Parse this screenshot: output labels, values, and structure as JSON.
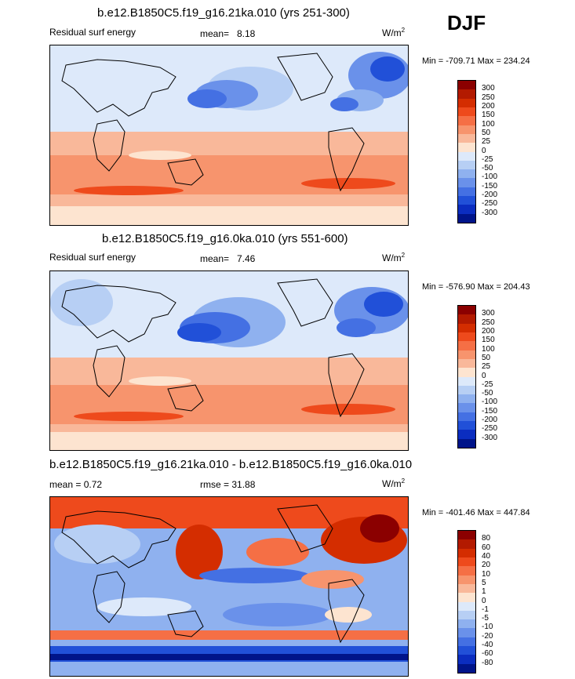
{
  "season": "DJF",
  "panels": [
    {
      "title": "b.e12.B1850C5.f19_g16.21ka.010 (yrs 251-300)",
      "left_label": "Residual surf energy",
      "mean_label": "mean=",
      "mean_value": "8.18",
      "units_base": "W/m",
      "units_exp": "2",
      "minmax": "Min = -709.71 Max = 234.24",
      "colorbar_labels": [
        "300",
        "250",
        "200",
        "150",
        "100",
        "50",
        "25",
        "0",
        "-25",
        "-50",
        "-100",
        "-150",
        "-200",
        "-250",
        "-300"
      ]
    },
    {
      "title": "b.e12.B1850C5.f19_g16.0ka.010 (yrs 551-600)",
      "left_label": "Residual surf energy",
      "mean_label": "mean=",
      "mean_value": "7.46",
      "units_base": "W/m",
      "units_exp": "2",
      "minmax": "Min = -576.90 Max = 204.43",
      "colorbar_labels": [
        "300",
        "250",
        "200",
        "150",
        "100",
        "50",
        "25",
        "0",
        "-25",
        "-50",
        "-100",
        "-150",
        "-200",
        "-250",
        "-300"
      ]
    },
    {
      "title": "b.e12.B1850C5.f19_g16.21ka.010 - b.e12.B1850C5.f19_g16.0ka.010",
      "mean_text": "mean =   0.72",
      "rmse_text": "rmse =   31.88",
      "units_base": "W/m",
      "units_exp": "2",
      "minmax": "Min = -401.46 Max = 447.84",
      "colorbar_labels": [
        "80",
        "60",
        "40",
        "20",
        "10",
        "5",
        "1",
        "0",
        "-1",
        "-5",
        "-10",
        "-20",
        "-40",
        "-60",
        "-80"
      ]
    }
  ],
  "colors": {
    "colorbar": [
      "#8b0000",
      "#b31a00",
      "#d42d00",
      "#ee4a1c",
      "#f56f45",
      "#f7946d",
      "#f9b89a",
      "#fde4d0",
      "#dde9fa",
      "#b7cff4",
      "#8fb1ef",
      "#6a91ea",
      "#4470e3",
      "#2150d8",
      "#0b2dc0",
      "#00148a"
    ]
  }
}
